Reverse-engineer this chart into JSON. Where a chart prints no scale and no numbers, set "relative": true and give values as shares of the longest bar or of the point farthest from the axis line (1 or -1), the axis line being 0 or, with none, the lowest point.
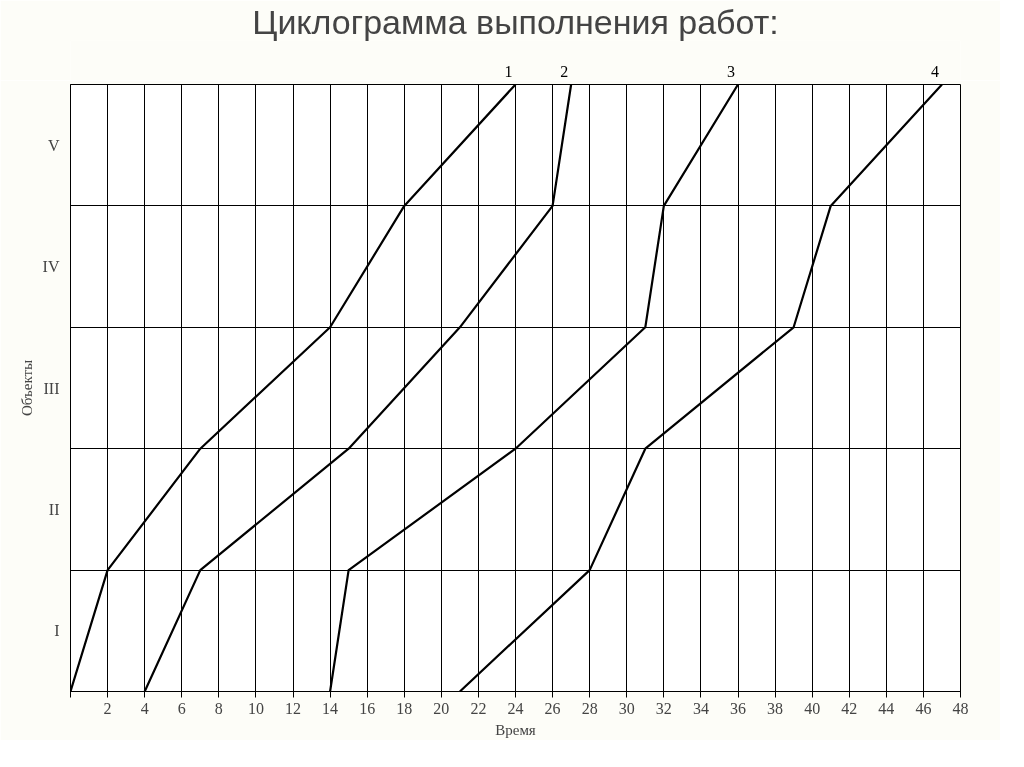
{
  "chart_data": {
    "type": "line",
    "title": "Циклограмма выполнения работ:",
    "xlabel": "Время",
    "ylabel": "Объекты",
    "xlim": [
      0,
      48
    ],
    "relative": true,
    "xticks": [
      {
        "value": 0,
        "label": null
      },
      2,
      4,
      6,
      8,
      10,
      12,
      14,
      16,
      18,
      20,
      22,
      24,
      26,
      28,
      30,
      32,
      34,
      36,
      38,
      40,
      42,
      44,
      46,
      48
    ],
    "annotations": [
      "I",
      "II",
      "III",
      "IV",
      "V"
    ],
    "grid": true,
    "line_style": "solid",
    "series": [
      {
        "name": "1",
        "color": "#000000",
        "x": [
          0,
          2,
          7,
          14,
          18,
          24
        ],
        "values": [
          0,
          0.2,
          0.4,
          0.6,
          0.8,
          1
        ]
      },
      {
        "name": "2",
        "color": "#000000",
        "x": [
          4,
          7,
          15,
          21,
          26,
          27
        ],
        "values": [
          0,
          0.2,
          0.4,
          0.6,
          0.8,
          1
        ]
      },
      {
        "name": "3",
        "color": "#000000",
        "x": [
          14,
          15,
          24,
          31,
          32,
          36
        ],
        "values": [
          0,
          0.2,
          0.4,
          0.6,
          0.8,
          1
        ]
      },
      {
        "name": "4",
        "color": "#000000",
        "x": [
          21,
          28,
          31,
          39,
          41,
          47
        ],
        "values": [
          0,
          0.2,
          0.4,
          0.6,
          0.8,
          1
        ]
      }
    ]
  }
}
